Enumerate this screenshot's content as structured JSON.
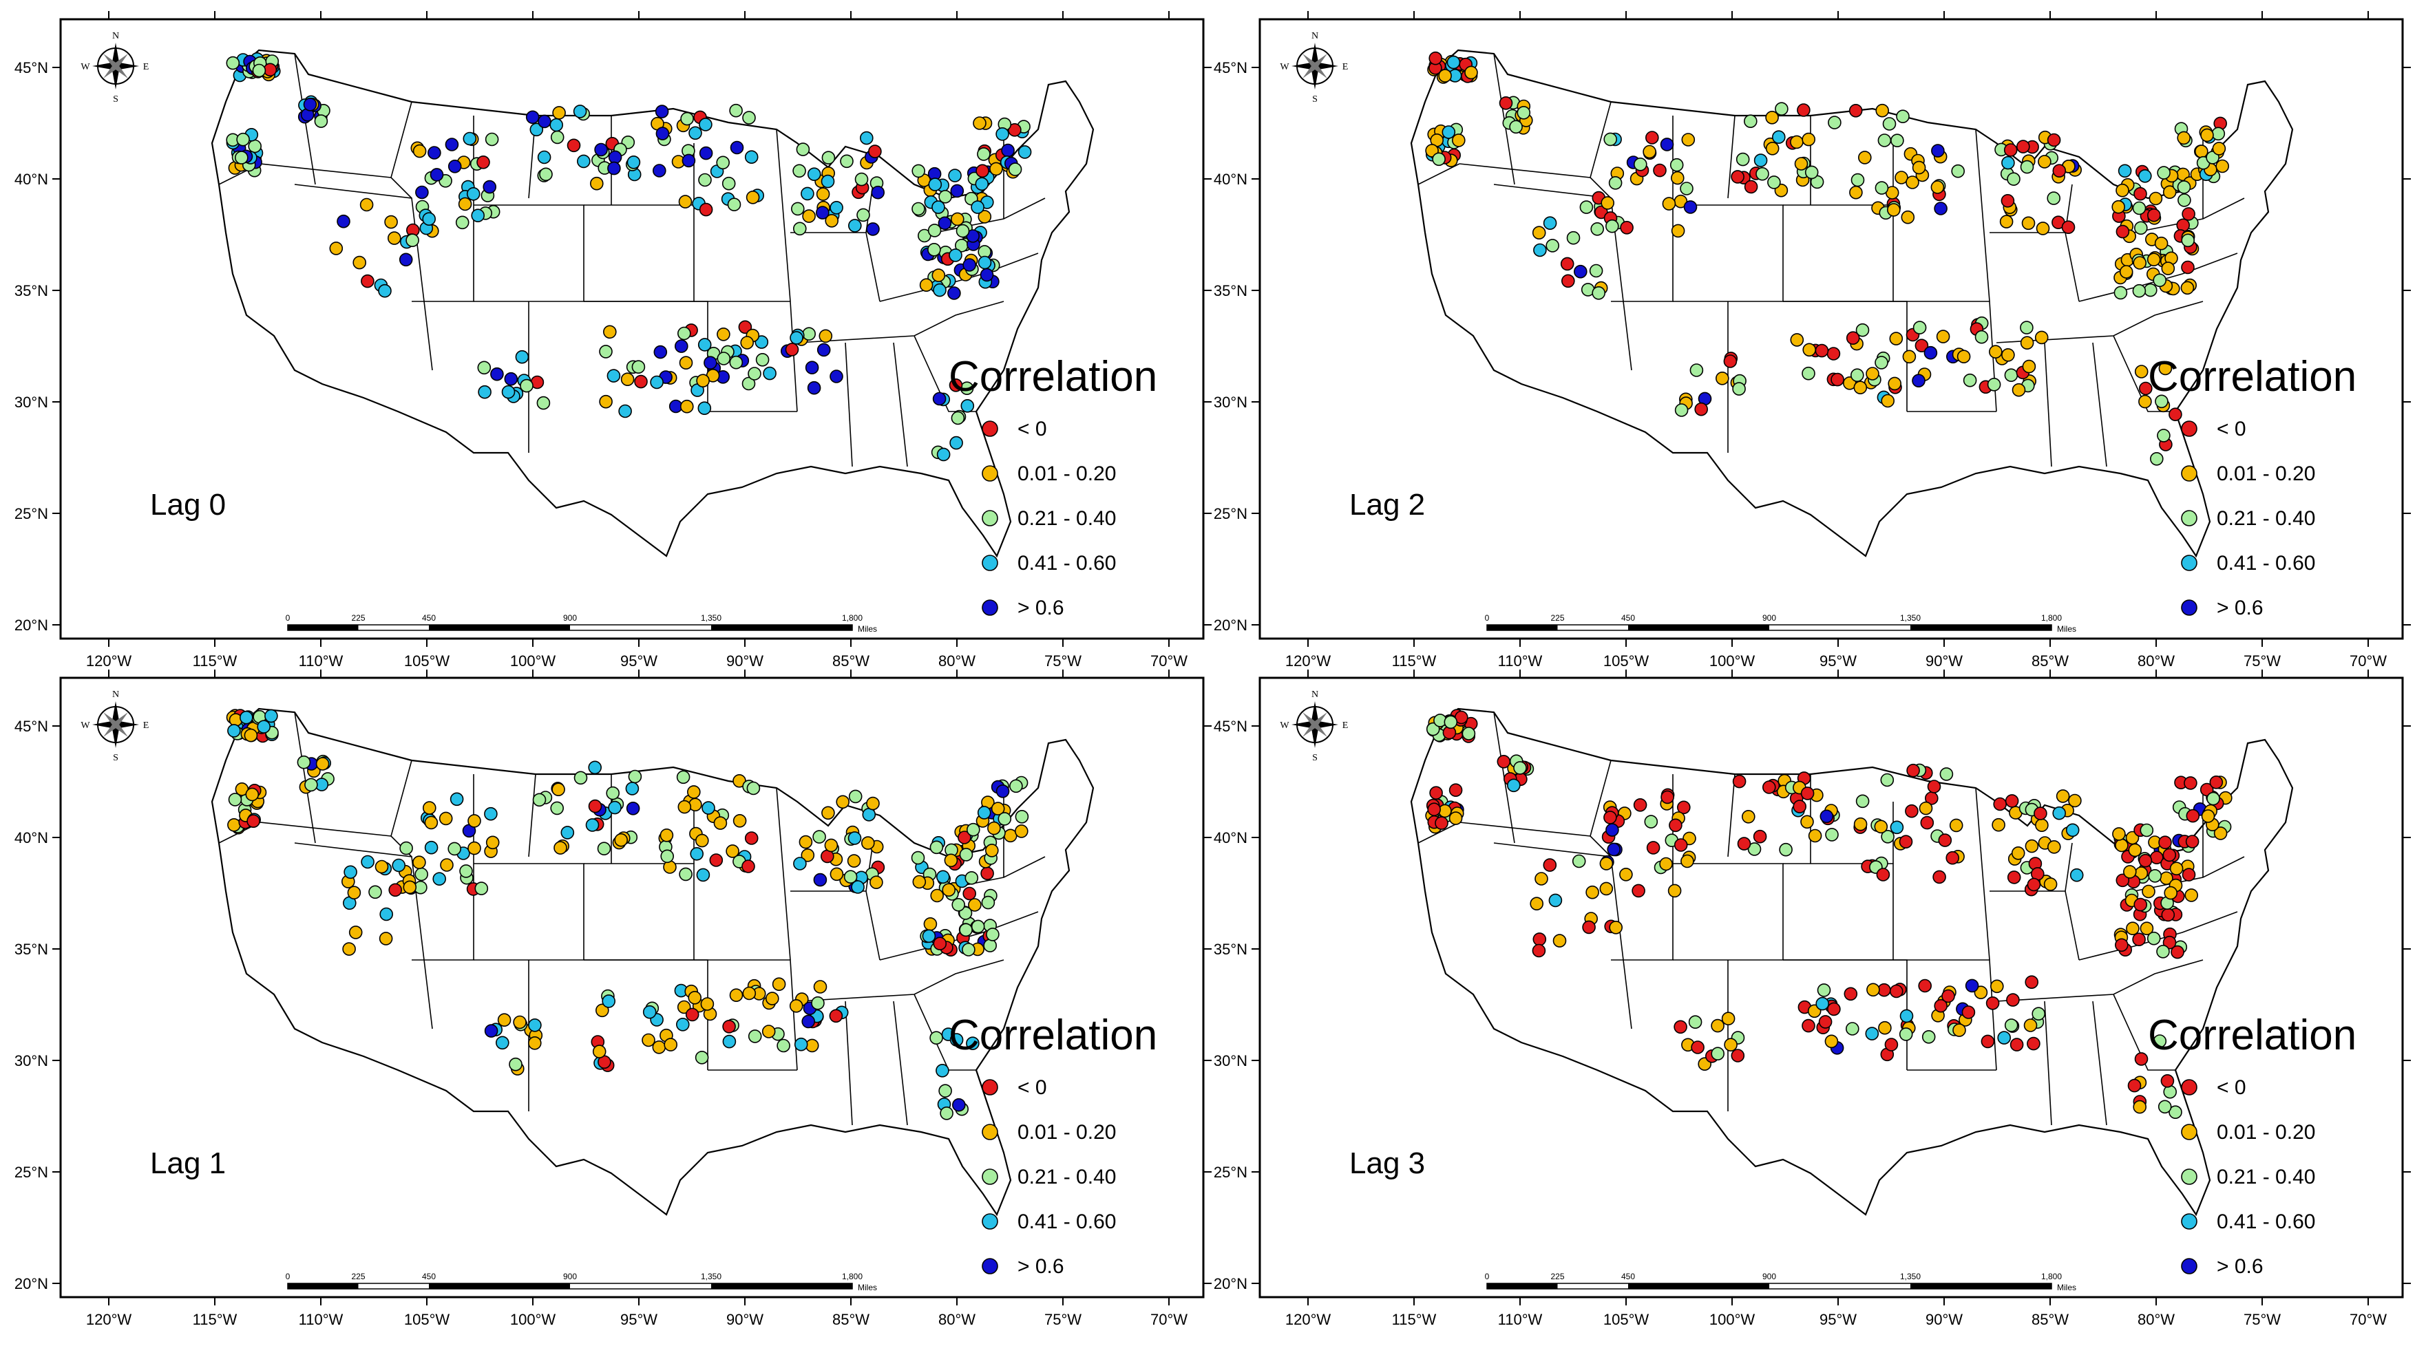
{
  "map_axes": {
    "lon_ticks": [
      "120°W",
      "115°W",
      "110°W",
      "105°W",
      "100°W",
      "95°W",
      "90°W",
      "85°W",
      "80°W",
      "75°W",
      "70°W"
    ],
    "lat_ticks": [
      "45°N",
      "40°N",
      "35°N",
      "30°N",
      "25°N",
      "20°N"
    ]
  },
  "compass": {
    "n": "N",
    "s": "S",
    "e": "E",
    "w": "W"
  },
  "scale_bar": {
    "ticks": [
      "0",
      "225",
      "450",
      "900",
      "1,350",
      "1,800"
    ],
    "unit": "Miles"
  },
  "legend": {
    "title": "Correlation",
    "classes": [
      {
        "label": "< 0",
        "color": "#e31a1c"
      },
      {
        "label": "0.01 - 0.20",
        "color": "#f5b800"
      },
      {
        "label": "0.21 - 0.40",
        "color": "#a8eea0"
      },
      {
        "label": "0.41 - 0.60",
        "color": "#28c0e8"
      },
      {
        "label": "> 0.6",
        "color": "#1010d0"
      }
    ]
  },
  "panels": [
    {
      "label": "Lag 0"
    },
    {
      "label": "Lag 2"
    },
    {
      "label": "Lag 1"
    },
    {
      "label": "Lag 3"
    }
  ]
}
